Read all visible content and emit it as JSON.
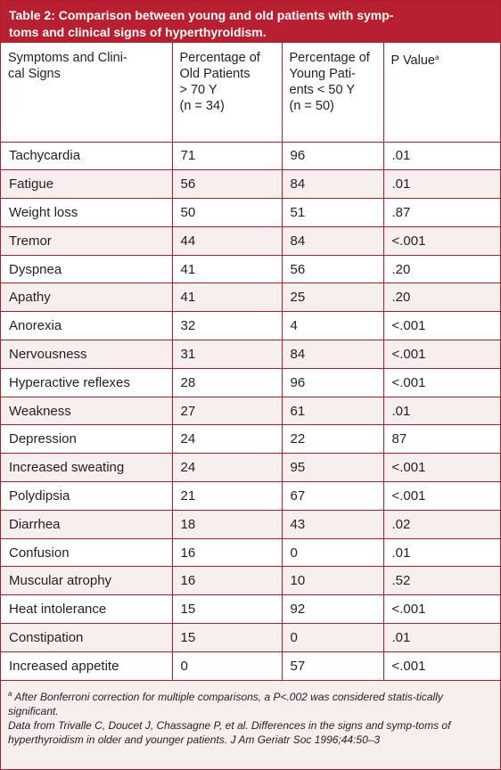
{
  "table": {
    "title": "Table 2: Comparison between young and old patients with symp-\ntoms and clinical signs of hyperthyroidism.",
    "headers": [
      "Symptoms and Clini-\ncal Signs",
      "Percentage of\nOld Patients\n> 70 Y\n(n = 34)",
      "Percentage of\nYoung Pati-\nents < 50 Y\n(n = 50)",
      "P Value"
    ],
    "header_note_marker": "a",
    "rows": [
      [
        "Tachycardia",
        "71",
        "96",
        ".01"
      ],
      [
        "Fatigue",
        "56",
        "84",
        ".01"
      ],
      [
        "Weight loss",
        "50",
        "51",
        ".87"
      ],
      [
        "Tremor",
        "44",
        "84",
        "<.001"
      ],
      [
        "Dyspnea",
        "41",
        "56",
        ".20"
      ],
      [
        "Apathy",
        "41",
        "25",
        ".20"
      ],
      [
        "Anorexia",
        "32",
        "4",
        "<.001"
      ],
      [
        "Nervousness",
        "31",
        "84",
        "<.001"
      ],
      [
        "Hyperactive reflexes",
        "28",
        "96",
        "<.001"
      ],
      [
        "Weakness",
        "27",
        "61",
        ".01"
      ],
      [
        "Depression",
        "24",
        "22",
        "87"
      ],
      [
        "Increased sweating",
        "24",
        "95",
        "<.001"
      ],
      [
        "Polydipsia",
        "21",
        "67",
        "<.001"
      ],
      [
        "Diarrhea",
        "18",
        "43",
        ".02"
      ],
      [
        "Confusion",
        "16",
        "0",
        ".01"
      ],
      [
        "Muscular atrophy",
        "16",
        "10",
        ".52"
      ],
      [
        "Heat intolerance",
        "15",
        "92",
        "<.001"
      ],
      [
        "Constipation",
        "15",
        "0",
        ".01"
      ],
      [
        "Increased appetite",
        "0",
        "57",
        "<.001"
      ]
    ]
  },
  "footnotes": {
    "marker": "a",
    "note": " After Bonferroni correction for multiple comparisons, a P<.002 was considered statis-tically significant.",
    "source": "Data from Trivalle C, Doucet J, Chassagne P, et al. Differences in the signs and symp-toms of hyperthyroidism in older and younger patients. J Am Geriatr Soc 1996;44:50–3"
  },
  "colors": {
    "accent": "#b8202f",
    "stripe": "#f7eeee"
  }
}
